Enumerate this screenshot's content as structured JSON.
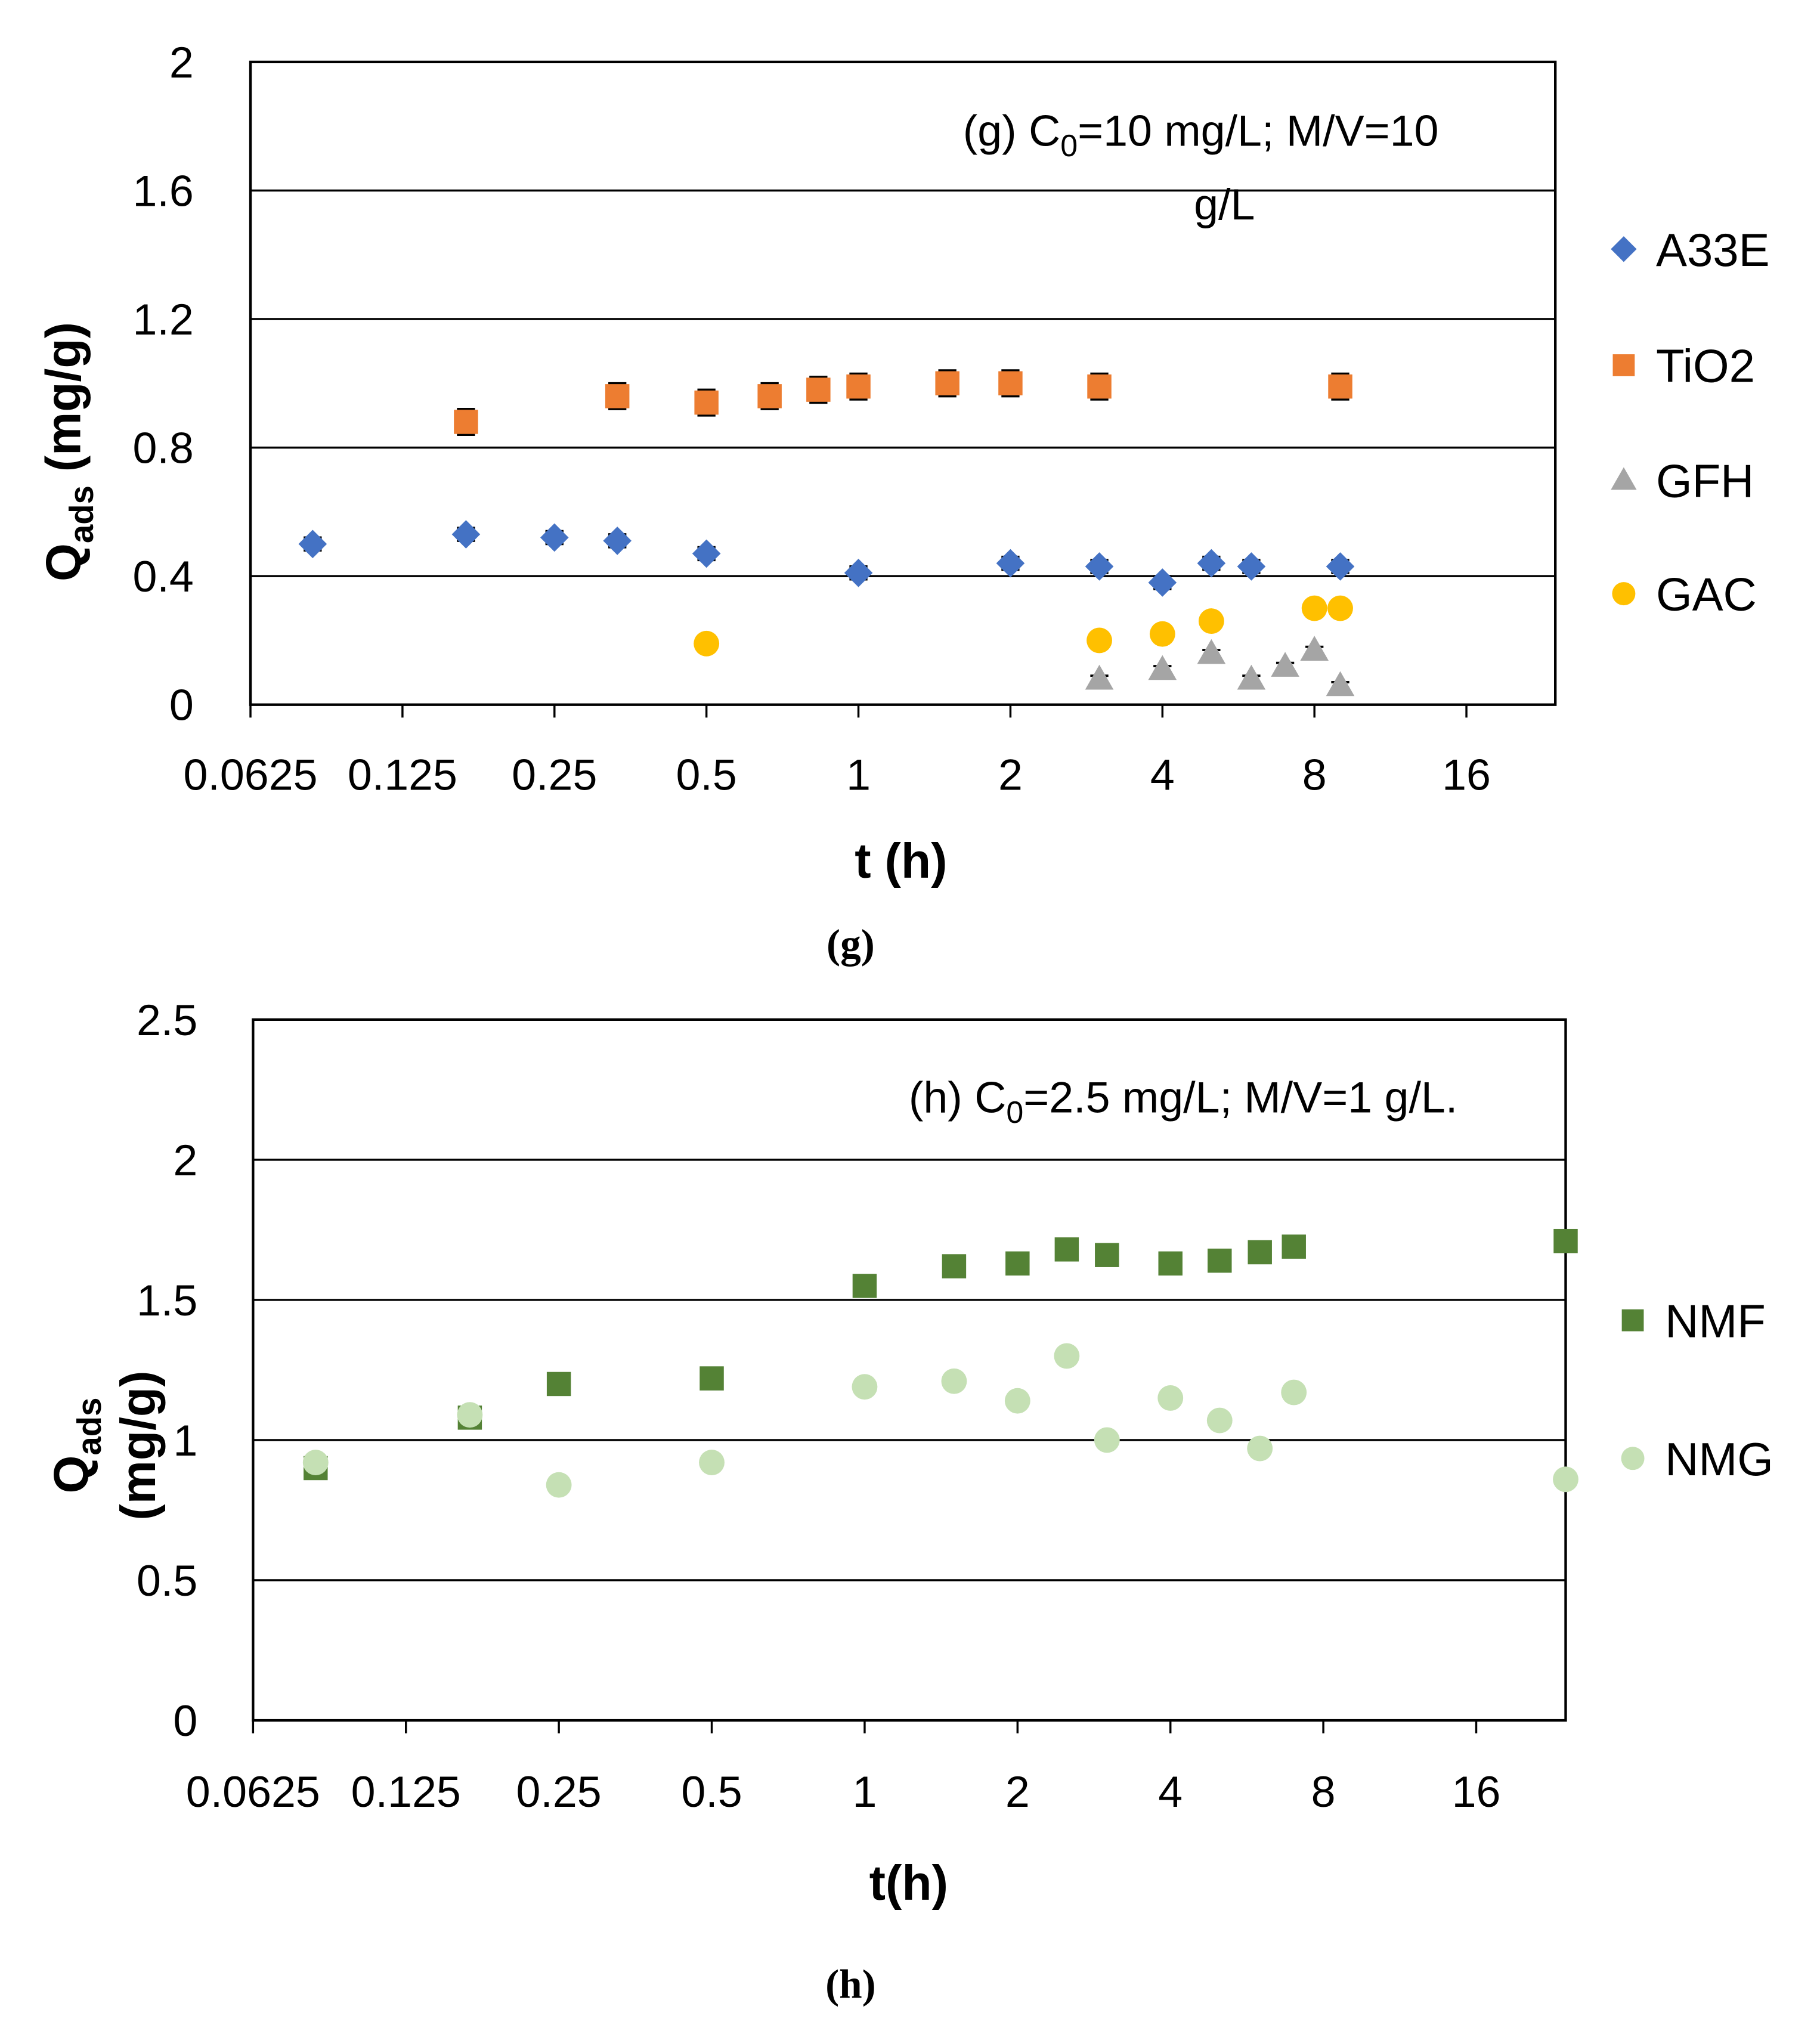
{
  "chart_data": [
    {
      "type": "scatter",
      "panel": "g",
      "caption": "(g)",
      "annotation": {
        "prefix": "(g) C",
        "sub": "0",
        "line1": "=10 mg/L; M/V=10",
        "line2": "g/L"
      },
      "xlabel": "t (h)",
      "ylabel": {
        "main": "Q",
        "sub": "ads",
        "rest": " (mg/g)"
      },
      "xscale": "log2",
      "xlim": [
        0.0625,
        24
      ],
      "ylim": [
        0,
        2
      ],
      "xticks": [
        0.0625,
        0.125,
        0.25,
        0.5,
        1,
        2,
        4,
        8,
        16
      ],
      "xtick_labels": [
        "0.0625",
        "0.125",
        "0.25",
        "0.5",
        "1",
        "2",
        "4",
        "8",
        "16"
      ],
      "yticks": [
        0,
        0.4,
        0.8,
        1.2,
        1.6,
        2
      ],
      "ytick_labels": [
        "0",
        "0.4",
        "0.8",
        "1.2",
        "1.6",
        "2"
      ],
      "grid": true,
      "legend_position": "right",
      "series": [
        {
          "name": "A33E",
          "marker": "diamond",
          "color": "#4472C4",
          "error": 0.02,
          "x": [
            0.083,
            0.167,
            0.25,
            0.333,
            0.5,
            1,
            2,
            3,
            4,
            5,
            6,
            9
          ],
          "y": [
            0.5,
            0.53,
            0.52,
            0.51,
            0.47,
            0.41,
            0.44,
            0.43,
            0.38,
            0.44,
            0.43,
            0.43
          ]
        },
        {
          "name": "TiO2",
          "marker": "square",
          "color": "#ED7D31",
          "error": 0.04,
          "x": [
            0.167,
            0.333,
            0.5,
            0.667,
            0.833,
            1,
            1.5,
            2,
            3,
            9
          ],
          "y": [
            0.88,
            0.96,
            0.94,
            0.96,
            0.98,
            0.99,
            1.0,
            1.0,
            0.99,
            0.99
          ]
        },
        {
          "name": "GFH",
          "marker": "triangle",
          "color": "#A5A5A5",
          "error": 0.01,
          "x": [
            3,
            4,
            5,
            6,
            7,
            8,
            9
          ],
          "y": [
            0.08,
            0.11,
            0.16,
            0.08,
            0.12,
            0.17,
            0.06
          ]
        },
        {
          "name": "GAC",
          "marker": "circle",
          "color": "#FFC000",
          "error": 0,
          "x": [
            0.5,
            3,
            4,
            5,
            8,
            9
          ],
          "y": [
            0.19,
            0.2,
            0.22,
            0.26,
            0.3,
            0.3
          ]
        }
      ]
    },
    {
      "type": "scatter",
      "panel": "h",
      "caption": "(h)",
      "annotation": {
        "prefix": "(h) C",
        "sub": "0",
        "line1": "=2.5 mg/L; M/V=1 g/L.",
        "line2": ""
      },
      "xlabel": "t(h)",
      "ylabel": {
        "main": "Q",
        "sub": "ads",
        "rest": "(mg/g)"
      },
      "xscale": "log2",
      "xlim": [
        0.0625,
        24
      ],
      "ylim": [
        0,
        2.5
      ],
      "xticks": [
        0.0625,
        0.125,
        0.25,
        0.5,
        1,
        2,
        4,
        8,
        16
      ],
      "xtick_labels": [
        "0.0625",
        "0.125",
        "0.25",
        "0.5",
        "1",
        "2",
        "4",
        "8",
        "16"
      ],
      "yticks": [
        0,
        0.5,
        1,
        1.5,
        2,
        2.5
      ],
      "ytick_labels": [
        "0",
        "0.5",
        "1",
        "1.5",
        "2",
        "2.5"
      ],
      "grid": true,
      "legend_position": "right",
      "series": [
        {
          "name": "NMF",
          "marker": "square",
          "color": "#548235",
          "error": 0.03,
          "x": [
            0.083,
            0.167,
            0.25,
            0.5,
            1,
            1.5,
            2,
            2.5,
            3,
            4,
            5,
            6,
            7,
            24
          ],
          "y": [
            0.9,
            1.08,
            1.2,
            1.22,
            1.55,
            1.62,
            1.63,
            1.68,
            1.66,
            1.63,
            1.64,
            1.67,
            1.69,
            1.71
          ]
        },
        {
          "name": "NMG",
          "marker": "circle",
          "color": "#C5E0B4",
          "error": 0.02,
          "x": [
            0.083,
            0.167,
            0.25,
            0.5,
            1,
            1.5,
            2,
            2.5,
            3,
            4,
            5,
            6,
            7,
            24
          ],
          "y": [
            0.92,
            1.09,
            0.84,
            0.92,
            1.19,
            1.21,
            1.14,
            1.3,
            1.0,
            1.15,
            1.07,
            0.97,
            1.17,
            0.86
          ]
        }
      ]
    }
  ]
}
